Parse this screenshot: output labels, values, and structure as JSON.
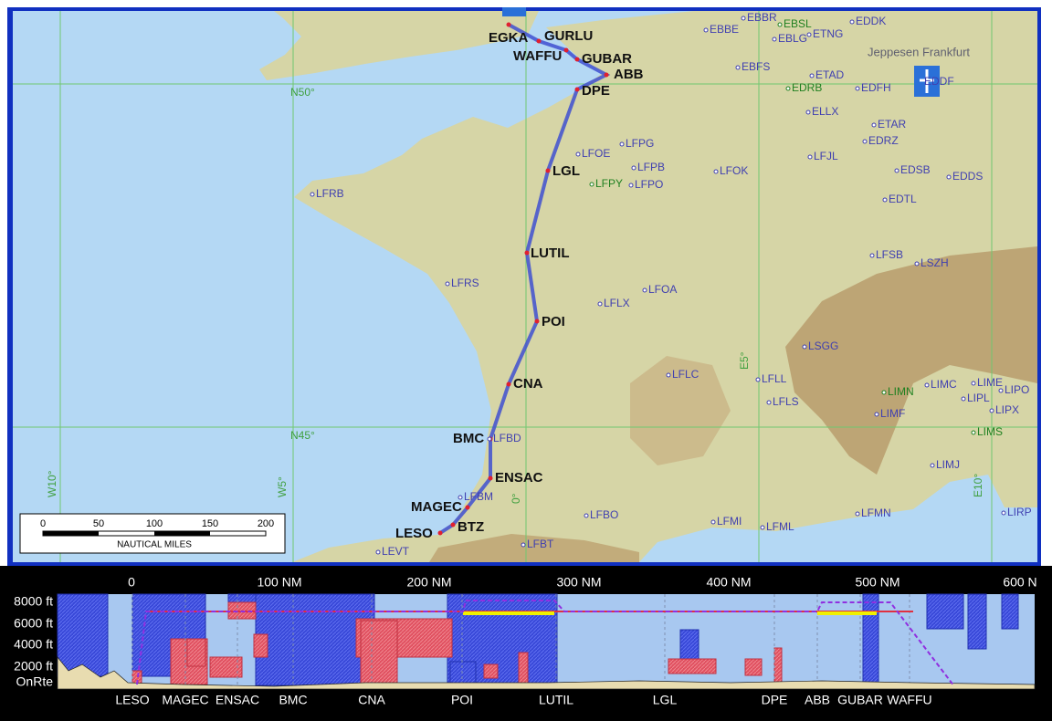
{
  "map": {
    "route": [
      "EGKA",
      "GURLU",
      "WAFFU",
      "GUBAR",
      "ABB",
      "DPE",
      "LGL",
      "LUTIL",
      "POI",
      "CNA",
      "BMC",
      "ENSAC",
      "MAGEC",
      "BTZ",
      "LESO"
    ],
    "airports": [
      "EBBR",
      "EBBE",
      "EBSL",
      "EBLG",
      "ETNG",
      "EDDK",
      "EBFS",
      "ETAD",
      "EDRB",
      "EDFH",
      "ELLX",
      "ETAR",
      "EDRZ",
      "LFPG",
      "LFOE",
      "LFPB",
      "LFPY",
      "LFPO",
      "LFOK",
      "LFJL",
      "EDSB",
      "EDDS",
      "LFRB",
      "EDTL",
      "LFSB",
      "LSZH",
      "LFRS",
      "LFOA",
      "LFLX",
      "LSGG",
      "LFLC",
      "LFLL",
      "LIME",
      "LIMC",
      "LIPO",
      "LIMN",
      "LIPL",
      "LFLS",
      "LIPX",
      "LIMF",
      "LIMS",
      "LFBD",
      "LIMJ",
      "LFBM",
      "LFBO",
      "LFMI",
      "LFML",
      "LFMN",
      "LIRP",
      "LFBT",
      "LEVT"
    ],
    "center_label": "Jeppesen Frankfurt",
    "center_id": "EDDF",
    "grid_labels": [
      "N50°",
      "N45°",
      "W10°",
      "W5°",
      "0°",
      "E5°",
      "E10°"
    ],
    "scale": {
      "ticks": [
        "0",
        "50",
        "100",
        "150",
        "200"
      ],
      "unit": "NAUTICAL MILES"
    }
  },
  "profile": {
    "distance_labels": [
      "0",
      "100 NM",
      "200 NM",
      "300 NM",
      "400 NM",
      "500 NM",
      "600 N"
    ],
    "altitude_labels": [
      "8000 ft",
      "6000 ft",
      "4000 ft",
      "2000 ft",
      "OnRte"
    ],
    "waypoints": [
      "LESO",
      "MAGEC",
      "ENSAC",
      "BMC",
      "CNA",
      "POI",
      "LUTIL",
      "LGL",
      "DPE",
      "ABB",
      "GUBAR",
      "WAFFU"
    ]
  }
}
